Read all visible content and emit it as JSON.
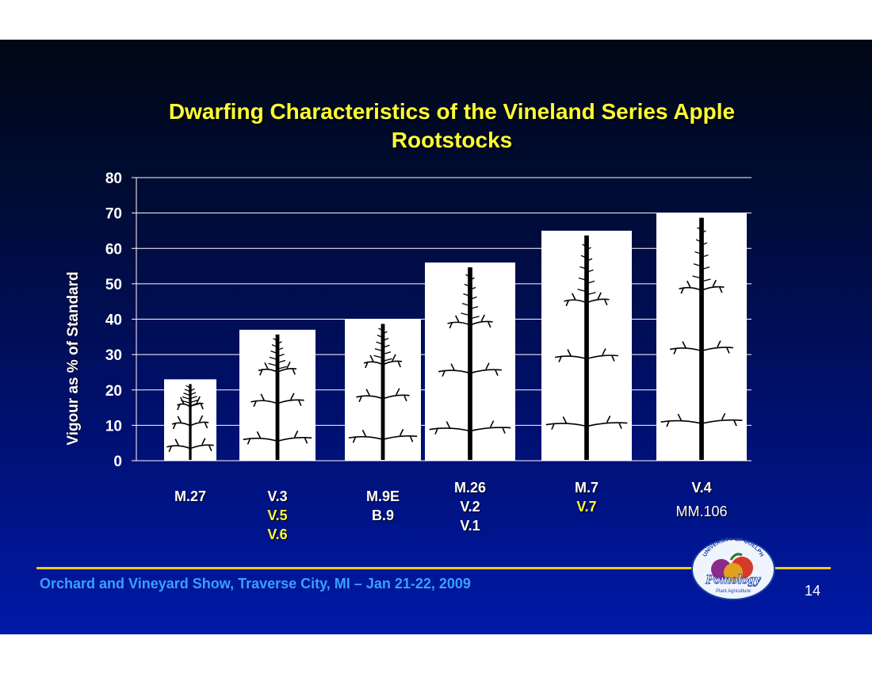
{
  "slide": {
    "title_line1": "Dwarfing Characteristics of the Vineland Series Apple",
    "title_line2": "Rootstocks",
    "footer": "Orchard and Vineyard Show, Traverse City, MI – Jan 21-22, 2009",
    "page_number": "14",
    "logo": {
      "icon": "university-of-guelph-pomology-logo",
      "text_arc": "UNIVERSITY OF GUELPH",
      "text_main": "Pomology",
      "text_sub": "Plant Agriculture"
    }
  },
  "chart_data": {
    "type": "bar",
    "ylabel": "Vigour as % of Standard",
    "ylim": [
      0,
      80
    ],
    "yticks": [
      0,
      10,
      20,
      30,
      40,
      50,
      60,
      70,
      80
    ],
    "grid": true,
    "bar_fill": "#ffffff",
    "bar_decoration": "tree-silhouette-icon",
    "categories": [
      {
        "lines": [
          {
            "text": "M.27",
            "color": "white"
          }
        ]
      },
      {
        "lines": [
          {
            "text": "V.3",
            "color": "white"
          },
          {
            "text": "V.5",
            "color": "yellow"
          },
          {
            "text": "V.6",
            "color": "yellow"
          }
        ]
      },
      {
        "lines": [
          {
            "text": "M.9E",
            "color": "white"
          },
          {
            "text": "B.9",
            "color": "white"
          }
        ]
      },
      {
        "lines": [
          {
            "text": "M.26",
            "color": "white"
          },
          {
            "text": "V.2",
            "color": "white"
          },
          {
            "text": "V.1",
            "color": "white"
          }
        ]
      },
      {
        "lines": [
          {
            "text": "M.7",
            "color": "white"
          },
          {
            "text": "V.7",
            "color": "yellow"
          }
        ]
      },
      {
        "lines": [
          {
            "text": "V.4",
            "color": "white"
          },
          {
            "text": "MM.106",
            "color": "white-normal"
          }
        ]
      }
    ],
    "values": [
      23,
      37,
      40,
      56,
      65,
      70
    ]
  }
}
